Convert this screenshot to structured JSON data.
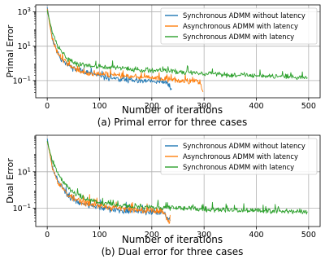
{
  "chart_data": [
    {
      "type": "line",
      "caption": "(a) Primal error for three cases",
      "xlabel": "Number of iterations",
      "ylabel": "Primal Error",
      "xlim": [
        -22,
        522
      ],
      "ylim_log10": [
        -2.0,
        3.4
      ],
      "yscale": "log",
      "grid": true,
      "legend_position": "top-right",
      "x_ticks": [
        0,
        100,
        200,
        300,
        400,
        500
      ],
      "x_tick_labels": [
        "0",
        "100",
        "200",
        "300",
        "400",
        "500"
      ],
      "y_ticks_log10": [
        3,
        1,
        -1
      ],
      "y_tick_labels": [
        {
          "base": "10",
          "exp": "3"
        },
        {
          "base": "10",
          "exp": "1"
        },
        {
          "base": "10",
          "exp": "−1"
        }
      ],
      "series": [
        {
          "name": "Synchronous ADMM without latency",
          "color": "#1f77b4",
          "last_x": 238,
          "points": [
            [
              0,
              3.3
            ],
            [
              5,
              2.3
            ],
            [
              10,
              1.4
            ],
            [
              15,
              1.0
            ],
            [
              20,
              0.6
            ],
            [
              25,
              0.3
            ],
            [
              30,
              0.2
            ],
            [
              40,
              -0.1
            ],
            [
              50,
              -0.3
            ],
            [
              60,
              -0.4
            ],
            [
              70,
              -0.5
            ],
            [
              80,
              -0.6
            ],
            [
              90,
              -0.65
            ],
            [
              100,
              -0.75
            ],
            [
              120,
              -0.85
            ],
            [
              140,
              -0.95
            ],
            [
              160,
              -1.0
            ],
            [
              180,
              -1.05
            ],
            [
              200,
              -1.05
            ],
            [
              220,
              -1.15
            ],
            [
              230,
              -1.1
            ],
            [
              238,
              -1.6
            ]
          ],
          "noise": 0.2,
          "seed": 11
        },
        {
          "name": "Asynchronous ADMM with latency",
          "color": "#ff7f0e",
          "last_x": 298,
          "points": [
            [
              0,
              3.2
            ],
            [
              5,
              2.2
            ],
            [
              10,
              1.4
            ],
            [
              15,
              1.0
            ],
            [
              20,
              0.6
            ],
            [
              30,
              0.25
            ],
            [
              40,
              -0.05
            ],
            [
              50,
              -0.3
            ],
            [
              60,
              -0.45
            ],
            [
              80,
              -0.55
            ],
            [
              100,
              -0.6
            ],
            [
              120,
              -0.65
            ],
            [
              140,
              -0.7
            ],
            [
              160,
              -0.75
            ],
            [
              180,
              -0.8
            ],
            [
              200,
              -0.85
            ],
            [
              220,
              -0.9
            ],
            [
              240,
              -0.95
            ],
            [
              260,
              -1.0
            ],
            [
              280,
              -1.05
            ],
            [
              292,
              -1.1
            ],
            [
              298,
              -1.8
            ]
          ],
          "noise": 0.2,
          "seed": 23
        },
        {
          "name": "Synchronous ADMM with latency",
          "color": "#2ca02c",
          "last_x": 498,
          "points": [
            [
              0,
              3.1
            ],
            [
              5,
              2.4
            ],
            [
              10,
              1.8
            ],
            [
              20,
              1.0
            ],
            [
              30,
              0.6
            ],
            [
              40,
              0.2
            ],
            [
              60,
              -0.05
            ],
            [
              80,
              -0.15
            ],
            [
              100,
              -0.2
            ],
            [
              150,
              -0.3
            ],
            [
              200,
              -0.4
            ],
            [
              250,
              -0.5
            ],
            [
              300,
              -0.6
            ],
            [
              350,
              -0.65
            ],
            [
              400,
              -0.7
            ],
            [
              450,
              -0.75
            ],
            [
              498,
              -0.8
            ]
          ],
          "noise": 0.18,
          "seed": 37
        }
      ]
    },
    {
      "type": "line",
      "caption": "(b) Dual error for three cases",
      "xlabel": "Number of iterations",
      "ylabel": "Dual Error",
      "xlim": [
        -22,
        522
      ],
      "ylim_log10": [
        -2.0,
        3.0
      ],
      "yscale": "log",
      "grid": true,
      "legend_position": "top-right",
      "x_ticks": [
        0,
        100,
        200,
        300,
        400,
        500
      ],
      "x_tick_labels": [
        "0",
        "100",
        "200",
        "300",
        "400",
        "500"
      ],
      "y_ticks_log10": [
        1,
        -1
      ],
      "y_tick_labels": [
        {
          "base": "10",
          "exp": "1"
        },
        {
          "base": "10",
          "exp": "−1"
        }
      ],
      "series": [
        {
          "name": "Synchronous ADMM without latency",
          "color": "#1f77b4",
          "last_x": 235,
          "points": [
            [
              0,
              2.8
            ],
            [
              5,
              2.0
            ],
            [
              10,
              1.2
            ],
            [
              20,
              0.5
            ],
            [
              30,
              0.1
            ],
            [
              40,
              -0.3
            ],
            [
              50,
              -0.5
            ],
            [
              60,
              -0.65
            ],
            [
              80,
              -0.8
            ],
            [
              100,
              -0.95
            ],
            [
              120,
              -1.05
            ],
            [
              150,
              -1.15
            ],
            [
              180,
              -1.2
            ],
            [
              200,
              -1.2
            ],
            [
              220,
              -1.25
            ],
            [
              235,
              -1.7
            ]
          ],
          "noise": 0.22,
          "seed": 41
        },
        {
          "name": "Asynchronous ADMM with latency",
          "color": "#ff7f0e",
          "last_x": 235,
          "points": [
            [
              0,
              2.7
            ],
            [
              5,
              2.0
            ],
            [
              10,
              1.2
            ],
            [
              20,
              0.5
            ],
            [
              30,
              0.1
            ],
            [
              40,
              -0.25
            ],
            [
              50,
              -0.45
            ],
            [
              60,
              -0.6
            ],
            [
              80,
              -0.75
            ],
            [
              100,
              -0.85
            ],
            [
              120,
              -0.95
            ],
            [
              150,
              -1.05
            ],
            [
              180,
              -1.1
            ],
            [
              200,
              -1.1
            ],
            [
              220,
              -1.15
            ],
            [
              235,
              -1.8
            ]
          ],
          "noise": 0.22,
          "seed": 53
        },
        {
          "name": "Synchronous ADMM with latency",
          "color": "#2ca02c",
          "last_x": 498,
          "points": [
            [
              0,
              2.7
            ],
            [
              5,
              2.1
            ],
            [
              10,
              1.6
            ],
            [
              20,
              1.0
            ],
            [
              30,
              0.5
            ],
            [
              40,
              0.1
            ],
            [
              60,
              -0.3
            ],
            [
              80,
              -0.55
            ],
            [
              100,
              -0.7
            ],
            [
              150,
              -0.85
            ],
            [
              200,
              -0.95
            ],
            [
              250,
              -1.0
            ],
            [
              300,
              -1.05
            ],
            [
              350,
              -1.1
            ],
            [
              400,
              -1.1
            ],
            [
              450,
              -1.15
            ],
            [
              498,
              -1.2
            ]
          ],
          "noise": 0.17,
          "seed": 67
        }
      ]
    }
  ]
}
